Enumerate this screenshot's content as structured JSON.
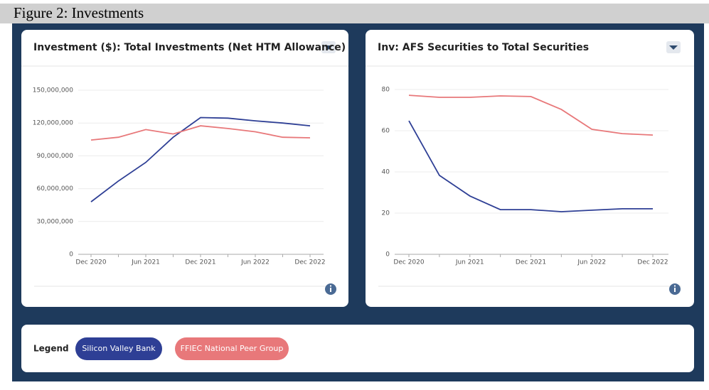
{
  "figure_title": "Figure 2:  Investments",
  "chart_data": [
    {
      "type": "line",
      "title": "Investment ($): Total Investments (Net HTM Allowance)",
      "categories": [
        "Dec 2020",
        null,
        "Jun 2021",
        null,
        "Dec 2021",
        null,
        "Jun 2022",
        null,
        "Dec 2022"
      ],
      "series": [
        {
          "name": "Silicon Valley Bank",
          "color": "#2e3f95",
          "values": [
            48000000,
            67000000,
            84000000,
            107000000,
            125000000,
            124500000,
            122000000,
            120000000,
            117500000
          ]
        },
        {
          "name": "FFIEC National Peer Group",
          "color": "#e8787a",
          "values": [
            104500000,
            107000000,
            114000000,
            110000000,
            117500000,
            115000000,
            112000000,
            107000000,
            106500000
          ]
        }
      ],
      "ylim": [
        0,
        150000000
      ],
      "yticks": [
        0,
        {
          "value": 30000000,
          "label": "30,000,000"
        },
        {
          "value": 60000000,
          "label": "60,000,000"
        },
        {
          "value": 90000000,
          "label": "90,000,000"
        },
        {
          "value": 120000000,
          "label": "120,000,000"
        },
        {
          "value": 150000000,
          "label": "150,000,000"
        }
      ],
      "grid": true
    },
    {
      "type": "line",
      "title": "Inv: AFS Securities to Total Securities",
      "categories": [
        "Dec 2020",
        null,
        "Jun 2021",
        null,
        "Dec 2021",
        null,
        "Jun 2022",
        null,
        "Dec 2022"
      ],
      "series": [
        {
          "name": "Silicon Valley Bank",
          "color": "#2e3f95",
          "values": [
            64.8,
            38.3,
            28.3,
            21.7,
            21.7,
            20.7,
            21.4,
            22.1,
            22.1
          ]
        },
        {
          "name": "FFIEC National Peer Group",
          "color": "#e8787a",
          "values": [
            77.2,
            76.2,
            76.2,
            76.9,
            76.6,
            70.3,
            60.7,
            58.6,
            57.9
          ]
        }
      ],
      "ylim": [
        0,
        80
      ],
      "yticks": [
        0,
        20,
        40,
        60,
        80
      ],
      "grid": true
    }
  ],
  "legend_title": "Legend"
}
